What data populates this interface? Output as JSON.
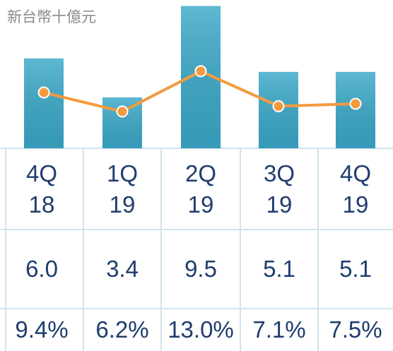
{
  "chart_data": {
    "type": "bar",
    "y_label": "新台幣十億元",
    "categories": [
      "4Q\n18",
      "1Q\n19",
      "2Q\n19",
      "3Q\n19",
      "4Q\n19"
    ],
    "ylim": [
      0,
      9.9
    ],
    "y2lim": [
      0,
      25
    ],
    "series": [
      {
        "type": "bar",
        "color": "#3aa8c8",
        "values": [
          6.0,
          3.4,
          9.5,
          5.1,
          5.1
        ],
        "value_labels": [
          "6.0",
          "3.4",
          "9.5",
          "5.1",
          "5.1"
        ]
      },
      {
        "type": "line",
        "axis": "y2",
        "color": "#f39a3e",
        "values": [
          9.4,
          6.2,
          13.0,
          7.1,
          7.5
        ],
        "value_labels": [
          "9.4%",
          "6.2%",
          "13.0%",
          "7.1%",
          "7.5%"
        ]
      }
    ]
  }
}
